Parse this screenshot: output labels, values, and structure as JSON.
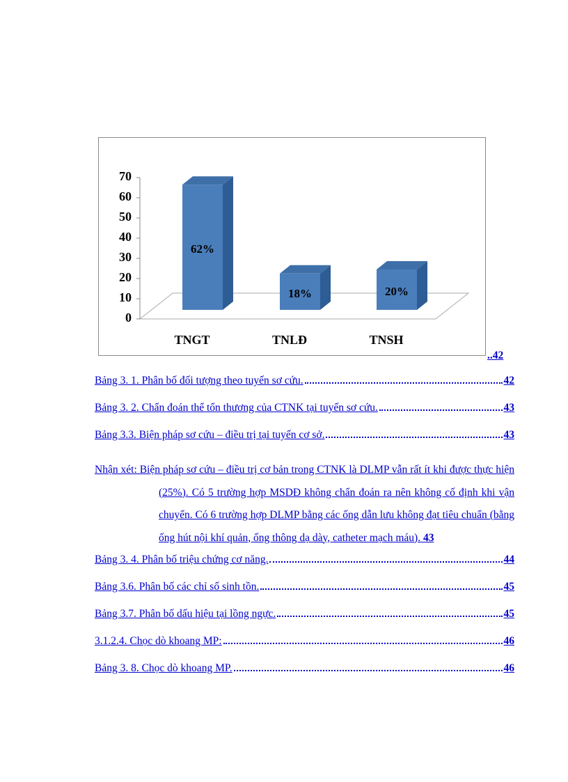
{
  "chart_data": {
    "type": "bar3d",
    "categories": [
      "TNGT",
      "TNLĐ",
      "TNSH"
    ],
    "values": [
      62,
      18,
      20
    ],
    "value_labels": [
      "62%",
      "18%",
      "20%"
    ],
    "color": "#4a7ebb",
    "ylim": [
      0,
      70
    ],
    "yticks": [
      0,
      10,
      20,
      30,
      40,
      50,
      60,
      70
    ],
    "grid": false
  },
  "chart_page": "..42",
  "toc": [
    {
      "title": "Bảng 3. 1. Phân bố đối tượng theo tuyến sơ cứu.",
      "page": "42"
    },
    {
      "title": "Bảng 3. 2. Chẩn đoán thể tổn thương của CTNK tại tuyến sơ cứu.",
      "page": "43"
    },
    {
      "title": "Bảng 3.3. Biện pháp sơ cứu – điều trị tại tuyến cơ sở.",
      "page": "43"
    },
    {
      "title": "Nhận xét: Biện pháp sơ cứu – điều trị cơ bản trong CTNK là DLMP vẫn rất ít khi được thực hiện (25%). Có 5 trường hợp MSDĐ không chẩn đoán ra nên không cố định khi vận chuyển. Có 6 trường hợp DLMP bằng các ống dẫn lưu không đạt tiêu chuẩn (bằng ống hút nội khí quản, ống thông dạ dày, catheter mạch máu).",
      "page": "43"
    },
    {
      "title": "Bảng 3. 4. Phân bố triệu chứng cơ năng.",
      "page": "44"
    },
    {
      "title": "Bảng 3.6. Phân bố các chỉ số sinh tồn.",
      "page": "45"
    },
    {
      "title": "Bảng 3.7. Phân bố dấu hiệu tại lồng ngực.",
      "page": "45"
    },
    {
      "title": "3.1.2.4. Chọc dò khoang MP:",
      "page": "46"
    },
    {
      "title": "Bảng 3. 8. Chọc dò khoang MP.",
      "page": "46"
    }
  ]
}
